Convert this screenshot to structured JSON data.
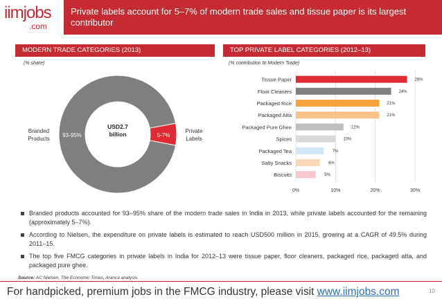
{
  "logo": {
    "brand": "iimjobs",
    "tld": ".com"
  },
  "header": {
    "title": "Private labels account for 5–7% of modern trade sales and tissue paper is its largest contributor"
  },
  "left_section": {
    "title": "MODERN TRADE CATEGORIES (2013)",
    "note": "(% share)"
  },
  "right_section": {
    "title": "TOP PRIVATE LABEL CATEGORIES (2012–13)",
    "note": "(% contribution to Modern Trade)"
  },
  "chart_data": [
    {
      "type": "pie",
      "title": "",
      "center_label": [
        "USD2.7",
        "billion"
      ],
      "slices": [
        {
          "label": "Branded Products",
          "value": 94,
          "value_label": "93-95%",
          "color": "#7f7f7f"
        },
        {
          "label": "Private Labels",
          "value": 6,
          "value_label": "5-7%",
          "color": "#e02b35"
        }
      ]
    },
    {
      "type": "bar",
      "orientation": "horizontal",
      "categories": [
        "Tissue Paper",
        "Floor Cleaners",
        "Packaged Rice",
        "Packaged Atta",
        "Packaged Pure Ghee",
        "Spices",
        "Packaged Tea",
        "Salty Snacks",
        "Biscuits"
      ],
      "values": [
        28,
        24,
        21,
        21,
        12,
        10,
        7,
        6,
        5
      ],
      "value_labels": [
        "28%",
        "24%",
        "21%",
        "21%",
        "12%",
        "10%",
        "7%",
        "6%",
        "5%"
      ],
      "colors": [
        "#e02b35",
        "#7f7f7f",
        "#f4a23a",
        "#f9c28a",
        "#bfbfbf",
        "#d9d9d9",
        "#cfe6f5",
        "#fad9b8",
        "#f7c9cf"
      ],
      "xlim": [
        0,
        30
      ],
      "xticks": [
        0,
        10,
        20,
        30
      ],
      "xtick_labels": [
        "0%",
        "10%",
        "20%",
        "30%"
      ],
      "grid": true
    }
  ],
  "bullets": [
    "Branded products accounted for 93–95% share of the modern trade sales in India in 2013, while private labels accounted for the remaining (approximately 5–7%).",
    "According to Nielsen, the expenditure on private labels is estimated to reach USD500 million in 2015, growing at a CAGR of 49.5% during 2011–15.",
    "The top five FMCG categories in private labels in India for 2012–13 were tissue paper, floor cleaners, packaged rice, packaged atta, and packaged pure ghee."
  ],
  "source": {
    "label": "Source:",
    "text": "AC Nielsen, The Economic Times, Aranca analysis"
  },
  "footer": {
    "text": "For handpicked, premium jobs in the FMCG industry, please visit ",
    "link": "www.iimjobs.com"
  },
  "page_number": "10"
}
